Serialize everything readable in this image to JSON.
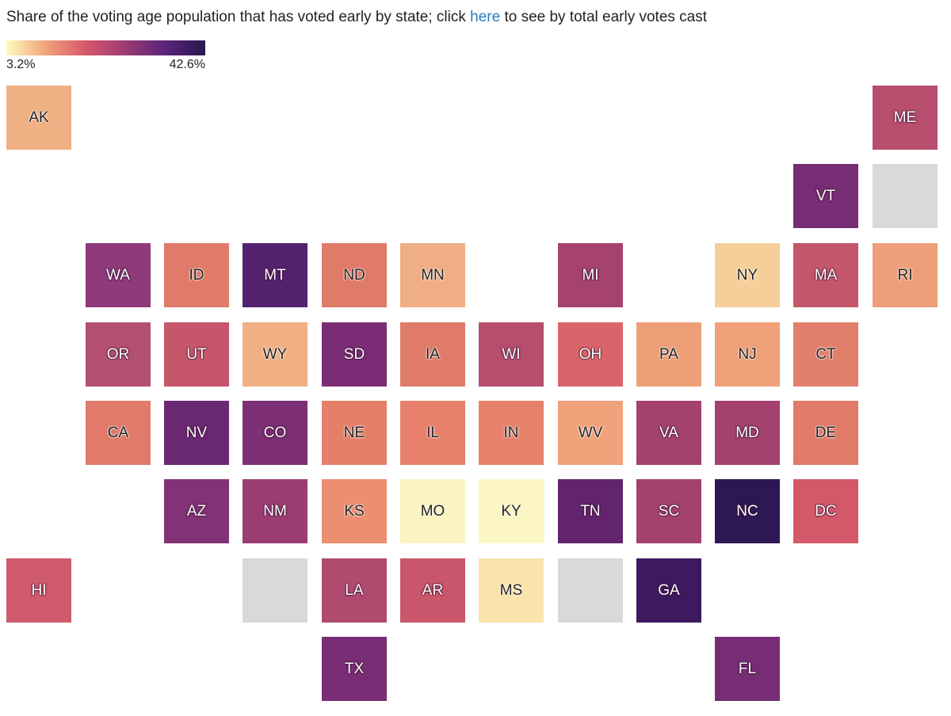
{
  "header": {
    "title_before": "Share of the voting age population that has voted early by state; click ",
    "title_link": "here",
    "title_after": " to see by total early votes cast"
  },
  "chart_data": {
    "type": "heatmap",
    "subtype": "tile-grid-map",
    "legend": {
      "min_label": "3.2%",
      "max_label": "42.6%",
      "gradient": [
        "#fcfdbf",
        "#f1a17a",
        "#d6586b",
        "#9b3b74",
        "#5a237a",
        "#2a1850"
      ]
    },
    "no_data_color": "#d9d9d9",
    "tiles": [
      {
        "label": "AK",
        "row": 0,
        "col": 0,
        "color": "#efb083"
      },
      {
        "label": "ME",
        "row": 0,
        "col": 11,
        "color": "#b84e6e"
      },
      {
        "label": "VT",
        "row": 1,
        "col": 10,
        "color": "#762d73"
      },
      {
        "label": "",
        "row": 1,
        "col": 11,
        "color": "#d9d9d9"
      },
      {
        "label": "WA",
        "row": 2,
        "col": 1,
        "color": "#8f3a7b"
      },
      {
        "label": "ID",
        "row": 2,
        "col": 2,
        "color": "#e07a69"
      },
      {
        "label": "MT",
        "row": 2,
        "col": 3,
        "color": "#52226e"
      },
      {
        "label": "ND",
        "row": 2,
        "col": 4,
        "color": "#e07a69"
      },
      {
        "label": "MN",
        "row": 2,
        "col": 5,
        "color": "#efae83"
      },
      {
        "label": "MI",
        "row": 2,
        "col": 7,
        "color": "#a5426f"
      },
      {
        "label": "NY",
        "row": 2,
        "col": 9,
        "color": "#f5cf99"
      },
      {
        "label": "MA",
        "row": 2,
        "col": 10,
        "color": "#c45669"
      },
      {
        "label": "RI",
        "row": 2,
        "col": 11,
        "color": "#ee9e78"
      },
      {
        "label": "OR",
        "row": 3,
        "col": 1,
        "color": "#b34f6f"
      },
      {
        "label": "UT",
        "row": 3,
        "col": 2,
        "color": "#c6566a"
      },
      {
        "label": "WY",
        "row": 3,
        "col": 3,
        "color": "#f0b083"
      },
      {
        "label": "SD",
        "row": 3,
        "col": 4,
        "color": "#7a2d74"
      },
      {
        "label": "IA",
        "row": 3,
        "col": 5,
        "color": "#e07a69"
      },
      {
        "label": "WI",
        "row": 3,
        "col": 6,
        "color": "#b84e6e"
      },
      {
        "label": "OH",
        "row": 3,
        "col": 7,
        "color": "#d9656a"
      },
      {
        "label": "PA",
        "row": 3,
        "col": 8,
        "color": "#ef9f78"
      },
      {
        "label": "NJ",
        "row": 3,
        "col": 9,
        "color": "#efa078"
      },
      {
        "label": "CT",
        "row": 3,
        "col": 10,
        "color": "#e27f6b"
      },
      {
        "label": "CA",
        "row": 4,
        "col": 1,
        "color": "#e07a6b"
      },
      {
        "label": "NV",
        "row": 4,
        "col": 2,
        "color": "#6a2872"
      },
      {
        "label": "CO",
        "row": 4,
        "col": 3,
        "color": "#7c2f75"
      },
      {
        "label": "NE",
        "row": 4,
        "col": 4,
        "color": "#e67f6a"
      },
      {
        "label": "IL",
        "row": 4,
        "col": 5,
        "color": "#e6806b"
      },
      {
        "label": "IN",
        "row": 4,
        "col": 6,
        "color": "#e6826b"
      },
      {
        "label": "WV",
        "row": 4,
        "col": 7,
        "color": "#f0a27a"
      },
      {
        "label": "VA",
        "row": 4,
        "col": 8,
        "color": "#a3426f"
      },
      {
        "label": "MD",
        "row": 4,
        "col": 9,
        "color": "#a3426f"
      },
      {
        "label": "DE",
        "row": 4,
        "col": 10,
        "color": "#e07a69"
      },
      {
        "label": "AZ",
        "row": 5,
        "col": 2,
        "color": "#823276"
      },
      {
        "label": "NM",
        "row": 5,
        "col": 3,
        "color": "#9b3c72"
      },
      {
        "label": "KS",
        "row": 5,
        "col": 4,
        "color": "#ec8e70"
      },
      {
        "label": "MO",
        "row": 5,
        "col": 5,
        "color": "#fbf3c0"
      },
      {
        "label": "KY",
        "row": 5,
        "col": 6,
        "color": "#fcf6c4"
      },
      {
        "label": "TN",
        "row": 5,
        "col": 7,
        "color": "#62246f"
      },
      {
        "label": "SC",
        "row": 5,
        "col": 8,
        "color": "#a3426f"
      },
      {
        "label": "NC",
        "row": 5,
        "col": 9,
        "color": "#2d1754"
      },
      {
        "label": "DC",
        "row": 5,
        "col": 10,
        "color": "#d3596a"
      },
      {
        "label": "HI",
        "row": 6,
        "col": 0,
        "color": "#cf5a6b"
      },
      {
        "label": "",
        "row": 6,
        "col": 3,
        "color": "#d9d9d9"
      },
      {
        "label": "LA",
        "row": 6,
        "col": 4,
        "color": "#b04b6f"
      },
      {
        "label": "AR",
        "row": 6,
        "col": 5,
        "color": "#c9566a"
      },
      {
        "label": "MS",
        "row": 6,
        "col": 6,
        "color": "#f9e4ad"
      },
      {
        "label": "",
        "row": 6,
        "col": 7,
        "color": "#d9d9d9"
      },
      {
        "label": "GA",
        "row": 6,
        "col": 8,
        "color": "#3d1a5f"
      },
      {
        "label": "TX",
        "row": 7,
        "col": 4,
        "color": "#782d74"
      },
      {
        "label": "FL",
        "row": 7,
        "col": 9,
        "color": "#762d73"
      }
    ]
  }
}
